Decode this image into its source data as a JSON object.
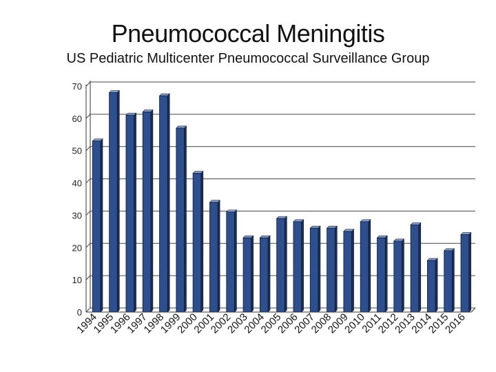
{
  "chart_data": {
    "type": "bar",
    "title": "Pneumococcal Meningitis",
    "subtitle": "US Pediatric Multicenter Pneumococcal Surveillance Group",
    "xlabel": "",
    "ylabel": "",
    "ylim": [
      0,
      70
    ],
    "yticks": [
      0,
      10,
      20,
      30,
      40,
      50,
      60,
      70
    ],
    "grid": true,
    "categories": [
      "1994",
      "1995",
      "1996",
      "1997",
      "1998",
      "1999",
      "2000",
      "2001",
      "2002",
      "2003",
      "2004",
      "2005",
      "2006",
      "2007",
      "2008",
      "2009",
      "2010",
      "2011",
      "2012",
      "2013",
      "2014",
      "2015",
      "2016"
    ],
    "values": [
      53,
      68,
      61,
      62,
      67,
      57,
      43,
      34,
      31,
      23,
      23,
      29,
      28,
      26,
      26,
      25,
      28,
      23,
      22,
      27,
      16,
      19,
      24
    ],
    "colors": {
      "bar": "#2e4e8e",
      "bar_top": "#8da3cc",
      "grid": "#444444"
    }
  }
}
